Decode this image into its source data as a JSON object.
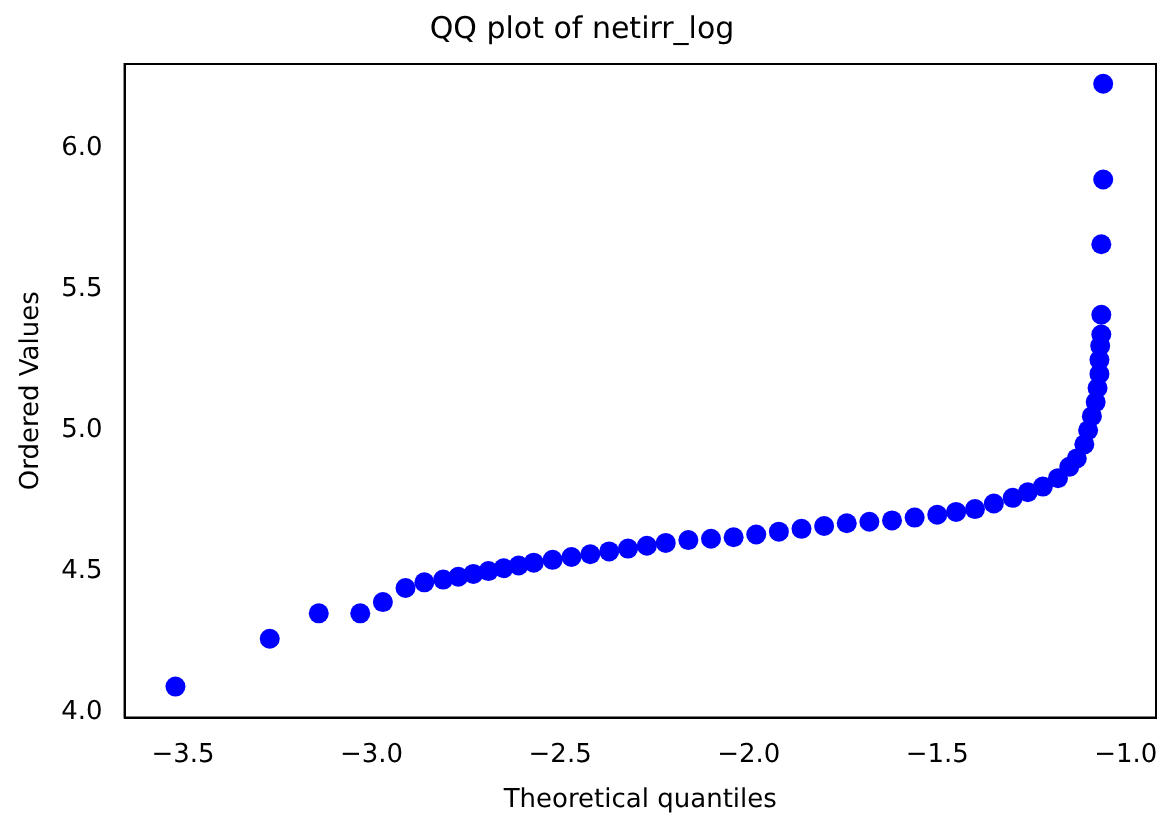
{
  "chart_data": {
    "type": "scatter",
    "title": "QQ plot of netirr_log",
    "xlabel": "Theoretical quantiles",
    "ylabel": "Ordered Values",
    "marker": "circle",
    "grid": false,
    "legend": false,
    "xlim": [
      -3.655,
      -0.92
    ],
    "ylim": [
      3.98,
      6.3
    ],
    "xticks": [
      {
        "value": -3.5,
        "label": "−3.5"
      },
      {
        "value": -3.0,
        "label": "−3.0"
      },
      {
        "value": -2.5,
        "label": "−2.5"
      },
      {
        "value": -2.0,
        "label": "−2.0"
      },
      {
        "value": -1.5,
        "label": "−1.5"
      },
      {
        "value": -1.0,
        "label": "−1.0"
      }
    ],
    "yticks": [
      {
        "value": 4.0,
        "label": "4.0"
      },
      {
        "value": 4.5,
        "label": "4.5"
      },
      {
        "value": 5.0,
        "label": "5.0"
      },
      {
        "value": 5.5,
        "label": "5.5"
      },
      {
        "value": 6.0,
        "label": "6.0"
      }
    ],
    "series": [
      {
        "color": "#0000ff",
        "x": [
          -3.52,
          -3.27,
          -3.14,
          -3.03,
          -2.97,
          -2.91,
          -2.86,
          -2.81,
          -2.77,
          -2.73,
          -2.69,
          -2.65,
          -2.61,
          -2.57,
          -2.52,
          -2.47,
          -2.42,
          -2.37,
          -2.32,
          -2.27,
          -2.22,
          -2.16,
          -2.1,
          -2.04,
          -1.98,
          -1.92,
          -1.86,
          -1.8,
          -1.74,
          -1.68,
          -1.62,
          -1.56,
          -1.5,
          -1.45,
          -1.4,
          -1.35,
          -1.3,
          -1.26,
          -1.22,
          -1.18,
          -1.15,
          -1.13,
          -1.11,
          -1.1,
          -1.09,
          -1.08,
          -1.075,
          -1.07,
          -1.07,
          -1.068,
          -1.065,
          -1.065,
          -1.065,
          -1.06,
          -1.06
        ],
        "values": [
          4.09,
          4.26,
          4.35,
          4.35,
          4.39,
          4.44,
          4.46,
          4.47,
          4.48,
          4.49,
          4.5,
          4.51,
          4.52,
          4.53,
          4.54,
          4.55,
          4.56,
          4.57,
          4.58,
          4.59,
          4.6,
          4.61,
          4.615,
          4.62,
          4.63,
          4.64,
          4.65,
          4.66,
          4.67,
          4.675,
          4.68,
          4.69,
          4.7,
          4.71,
          4.72,
          4.74,
          4.76,
          4.78,
          4.8,
          4.83,
          4.87,
          4.9,
          4.95,
          5.0,
          5.05,
          5.1,
          5.15,
          5.2,
          5.25,
          5.3,
          5.34,
          5.41,
          5.66,
          5.89,
          6.23
        ]
      }
    ]
  }
}
